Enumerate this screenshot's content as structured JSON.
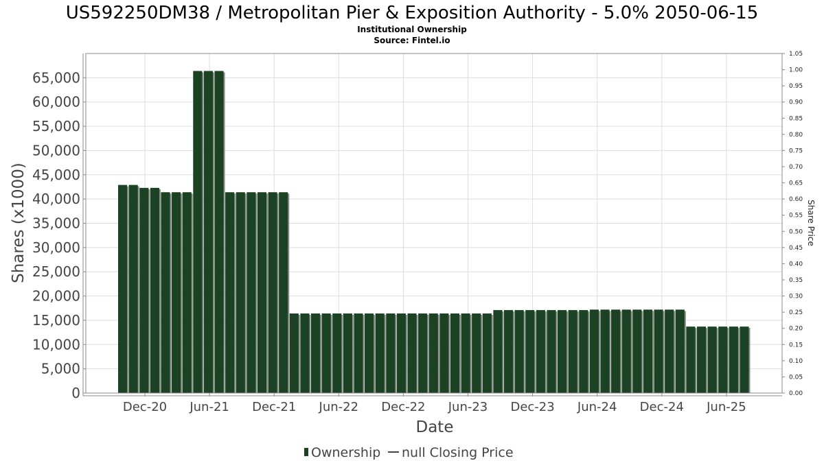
{
  "header": {
    "title": "US592250DM38 / Metropolitan Pier & Exposition Authority - 5.0% 2050-06-15",
    "subtitle": "Institutional Ownership",
    "source": "Source: Fintel.io"
  },
  "legend": {
    "ownership": "Ownership",
    "price": "null Closing Price"
  },
  "colors": {
    "bar": "#1a4223",
    "bar_shadow": "#8a8f8a",
    "grid": "#dddddd",
    "axis": "#888888"
  },
  "chart_data": {
    "type": "bar",
    "xlabel": "Date",
    "ylabel": "Shares (x1000)",
    "y2label": "Share Price",
    "ylim": [
      0,
      70000
    ],
    "y2lim": [
      0,
      1.05
    ],
    "grid": true,
    "legend_position": "bottom",
    "x_ticks": [
      "Dec-20",
      "Jun-21",
      "Dec-21",
      "Jun-22",
      "Dec-22",
      "Jun-23",
      "Dec-23",
      "Jun-24",
      "Dec-24",
      "Jun-25"
    ],
    "y_ticks": [
      "0",
      "5,000",
      "10,000",
      "15,000",
      "20,000",
      "25,000",
      "30,000",
      "35,000",
      "40,000",
      "45,000",
      "50,000",
      "55,000",
      "60,000",
      "65,000"
    ],
    "y2_ticks": [
      "0.00",
      "0.05",
      "0.10",
      "0.15",
      "0.20",
      "0.25",
      "0.30",
      "0.35",
      "0.40",
      "0.45",
      "0.50",
      "0.55",
      "0.60",
      "0.65",
      "0.70",
      "0.75",
      "0.80",
      "0.85",
      "0.90",
      "0.95",
      "1.00",
      "1.05"
    ],
    "series": [
      {
        "name": "Ownership",
        "values": [
          42900,
          42900,
          42300,
          42300,
          41400,
          41400,
          41400,
          66400,
          66400,
          66400,
          41400,
          41400,
          41400,
          41400,
          41400,
          41400,
          16400,
          16400,
          16400,
          16400,
          16400,
          16400,
          16400,
          16400,
          16400,
          16400,
          16400,
          16400,
          16400,
          16400,
          16400,
          16400,
          16400,
          16400,
          16400,
          17100,
          17100,
          17100,
          17100,
          17100,
          17100,
          17100,
          17100,
          17100,
          17200,
          17200,
          17200,
          17200,
          17200,
          17200,
          17200,
          17200,
          17200,
          13700,
          13700,
          13700,
          13700,
          13700,
          13700
        ]
      }
    ]
  }
}
